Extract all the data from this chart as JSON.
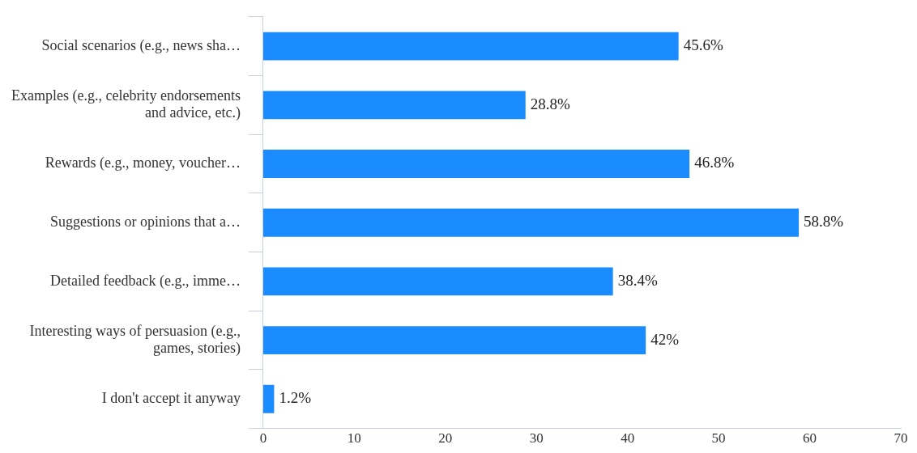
{
  "chart_data": {
    "type": "bar",
    "orientation": "horizontal",
    "categories": [
      "Social scenarios (e.g., news sha…",
      "Examples (e.g., celebrity endorsements and advice, etc.)",
      "Rewards (e.g., money, voucher…",
      "Suggestions or opinions that a…",
      "Detailed feedback (e.g., imme…",
      "Interesting ways of persuasion (e.g., games, stories)",
      "I don't accept it anyway"
    ],
    "values": [
      45.6,
      28.8,
      46.8,
      58.8,
      38.4,
      42,
      1.2
    ],
    "value_labels": [
      "45.6%",
      "28.8%",
      "46.8%",
      "58.8%",
      "38.4%",
      "42%",
      "1.2%"
    ],
    "color": "#1a8cff",
    "xlim": [
      0,
      70
    ],
    "xticks": [
      0,
      10,
      20,
      30,
      40,
      50,
      60,
      70
    ],
    "grid": false,
    "legend": false
  }
}
